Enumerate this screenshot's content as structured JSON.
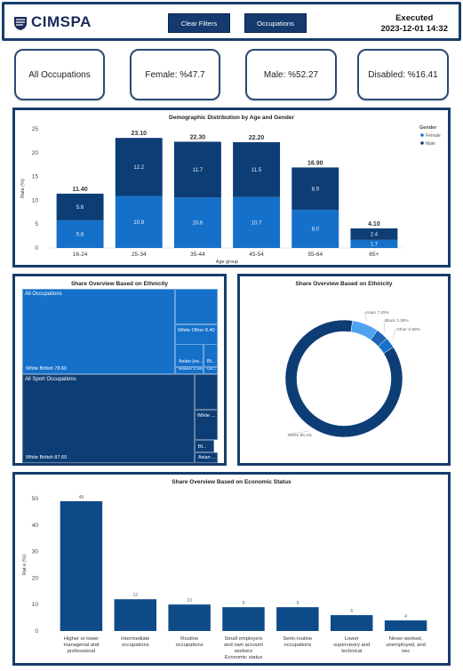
{
  "header": {
    "logo_text": "CIMSPA",
    "clear_filters_label": "Clear Filters",
    "occupations_label": "Occupations",
    "executed_label": "Executed",
    "executed_time": "2023-12-01 14:32"
  },
  "kpis": {
    "occupation": "All Occupations",
    "female": "Female: %47.7",
    "male": "Male: %52.27",
    "disabled": "Disabled: %16.41"
  },
  "colors": {
    "navy": "#0d3d75",
    "blue": "#1570c9",
    "light_blue": "#4ea3f0",
    "panel_border": "#173d6b"
  },
  "chart_data": [
    {
      "type": "bar",
      "stacked": true,
      "title": "Demographic Distribution by Age and Gender",
      "xlabel": "Age group",
      "ylabel": "Rate (%)",
      "ylim": [
        0,
        25
      ],
      "yticks": [
        0,
        5,
        10,
        15,
        20,
        25
      ],
      "categories": [
        "16-24",
        "25-34",
        "35-44",
        "45-54",
        "55-64",
        "65+"
      ],
      "totals": [
        "11.40",
        "23.10",
        "22.30",
        "22.20",
        "16.90",
        "4.10"
      ],
      "legend_title": "Gender",
      "legend_position": "top-right",
      "series": [
        {
          "name": "Female",
          "color": "#1570c9",
          "values": [
            5.8,
            10.9,
            10.6,
            10.7,
            8.0,
            1.7
          ]
        },
        {
          "name": "Male",
          "color": "#0d3d75",
          "values": [
            5.6,
            12.2,
            11.7,
            11.5,
            8.9,
            2.4
          ]
        }
      ]
    },
    {
      "type": "treemap",
      "title": "Share Overview Based on Ethnicity",
      "groups": [
        {
          "name": "All Occupations",
          "color": "#1570c9",
          "items": [
            {
              "label": "White British 78.60",
              "value": 78.6
            },
            {
              "label": "White Other 8.40",
              "value": 8.4
            },
            {
              "label": "Asian (ex...",
              "value": 5.0
            },
            {
              "label": "Bl...",
              "value": 3.0
            },
            {
              "label": "Mixed 1.60",
              "value": 1.6
            },
            {
              "label": "Ot...",
              "value": 1.0
            }
          ]
        },
        {
          "name": "All Sport Occupations",
          "color": "#0d3d75",
          "items": [
            {
              "label": "White British 87.60",
              "value": 87.6
            },
            {
              "label": "White ...",
              "value": 6.0
            },
            {
              "label": "Bl...",
              "value": 2.5
            },
            {
              "label": "Asian ...",
              "value": 2.0
            }
          ]
        }
      ]
    },
    {
      "type": "pie",
      "donut": true,
      "title": "Share Overview Based on Ethnicity",
      "slices": [
        {
          "label": "White 86.4%",
          "value": 86.4,
          "color": "#0d3d75"
        },
        {
          "label": "Asian 7.25%",
          "value": 7.25,
          "color": "#4ea3f0"
        },
        {
          "label": "Black 3.38%",
          "value": 3.38,
          "color": "#1f64b5"
        },
        {
          "label": "Other 2.98%",
          "value": 2.98,
          "color": "#1570c9"
        }
      ]
    },
    {
      "type": "bar",
      "title": "Share Overview Based on Economic Status",
      "xlabel": "Economic status",
      "ylabel": "Rat e (%)",
      "ylim": [
        0,
        50
      ],
      "yticks": [
        0,
        10,
        20,
        30,
        40,
        50
      ],
      "color": "#0d4a88",
      "categories": [
        [
          "Higher or lower",
          "managerial and",
          "professional"
        ],
        [
          "Intermediate",
          "occupations"
        ],
        [
          "Routine",
          "occupations"
        ],
        [
          "Small employers",
          "and own account",
          "workers"
        ],
        [
          "Semi-routine",
          "occupations"
        ],
        [
          "Lower",
          "supervisory and",
          "technical"
        ],
        [
          "Never worked,",
          "unemployed, and",
          "nec"
        ]
      ],
      "values": [
        49,
        12,
        10,
        9,
        9,
        6,
        4
      ]
    }
  ]
}
